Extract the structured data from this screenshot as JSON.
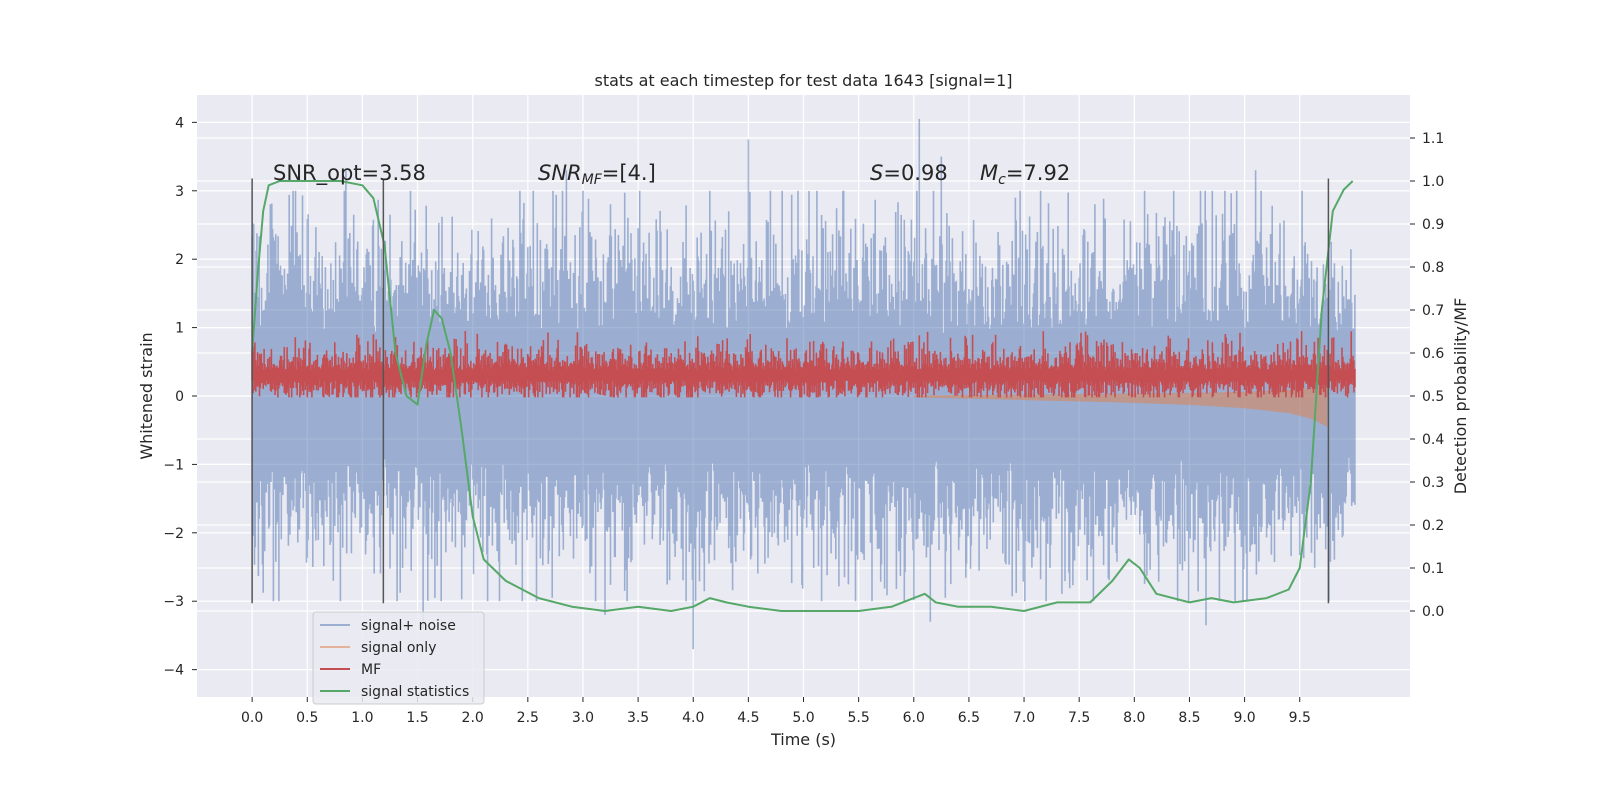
{
  "chart_data": {
    "type": "line",
    "title": "stats at each timestep for test data 1643 [signal=1]",
    "xlabel": "Time (s)",
    "ylabel": "Whitened strain",
    "y2label": "Detection probability/MF",
    "xlim": [
      -0.5,
      10.5
    ],
    "ylim": [
      -4.4,
      4.4
    ],
    "y2lim": [
      -0.2,
      1.2
    ],
    "xticks": [
      "0.0",
      "0.5",
      "1.0",
      "1.5",
      "2.0",
      "2.5",
      "3.0",
      "3.5",
      "4.0",
      "4.5",
      "5.0",
      "5.5",
      "6.0",
      "6.5",
      "7.0",
      "7.5",
      "8.0",
      "8.5",
      "9.0",
      "9.5"
    ],
    "yticks": [
      "4",
      "3",
      "2",
      "1",
      "0",
      "−1",
      "−2",
      "−3",
      "−4"
    ],
    "y2ticks": [
      "1.1",
      "1.0",
      "0.9",
      "0.8",
      "0.7",
      "0.6",
      "0.5",
      "0.4",
      "0.3",
      "0.2",
      "0.1",
      "0.0"
    ],
    "grid": true,
    "legend_position": "lower-left",
    "background": "#eaeaf2",
    "annotations": {
      "snr_opt": "SNR_opt=3.58",
      "snr_mf_label": "SNR",
      "snr_mf_sub": "MF",
      "snr_mf_value": "=[4.]",
      "s_label": "S",
      "s_value": "=0.98",
      "mc_label": "M",
      "mc_sub": "c",
      "mc_value": "=7.92"
    },
    "vlines_x": [
      0.0,
      1.19,
      9.76
    ],
    "series": [
      {
        "name": "signal+ noise",
        "color": "#4c72b0",
        "alpha": 0.5,
        "axis": "left",
        "x_range": [
          0.0,
          10.0
        ],
        "noise_std": 0.9,
        "peaks": [
          [
            0.85,
            3.3
          ],
          [
            2.85,
            3.3
          ],
          [
            4.5,
            3.75
          ],
          [
            6.05,
            4.05
          ],
          [
            6.25,
            3.5
          ],
          [
            9.1,
            3.3
          ],
          [
            4.0,
            -3.7
          ],
          [
            3.2,
            -3.2
          ],
          [
            6.15,
            -3.3
          ],
          [
            8.65,
            -3.35
          ],
          [
            1.55,
            -3.4
          ]
        ]
      },
      {
        "name": "signal only",
        "color": "#dd8452",
        "alpha": 0.55,
        "axis": "left",
        "envelope": [
          [
            6.0,
            0.02
          ],
          [
            7.0,
            0.06
          ],
          [
            7.8,
            0.09
          ],
          [
            8.5,
            0.13
          ],
          [
            9.0,
            0.18
          ],
          [
            9.4,
            0.25
          ],
          [
            9.6,
            0.33
          ],
          [
            9.75,
            0.45
          ]
        ]
      },
      {
        "name": "MF",
        "color": "#c44e52",
        "alpha": 1.0,
        "axis": "left",
        "x_range": [
          0.0,
          10.0
        ],
        "mean": 0.28,
        "spread": 0.18,
        "peak_max": 0.95
      },
      {
        "name": "signal statistics",
        "color": "#55a868",
        "alpha": 1.0,
        "axis": "right",
        "x": [
          0.0,
          0.05,
          0.1,
          0.15,
          0.25,
          0.4,
          0.6,
          0.8,
          1.0,
          1.1,
          1.2,
          1.3,
          1.4,
          1.5,
          1.58,
          1.65,
          1.72,
          1.8,
          1.9,
          2.0,
          2.1,
          2.3,
          2.6,
          2.9,
          3.2,
          3.5,
          3.8,
          4.0,
          4.15,
          4.3,
          4.5,
          4.8,
          5.1,
          5.5,
          5.8,
          6.0,
          6.1,
          6.2,
          6.4,
          6.7,
          7.0,
          7.3,
          7.6,
          7.8,
          7.95,
          8.05,
          8.2,
          8.5,
          8.7,
          8.9,
          9.2,
          9.4,
          9.5,
          9.6,
          9.7,
          9.8,
          9.9,
          9.98
        ],
        "y": [
          0.6,
          0.78,
          0.93,
          0.99,
          1.0,
          1.0,
          1.0,
          1.0,
          0.99,
          0.96,
          0.85,
          0.6,
          0.5,
          0.48,
          0.62,
          0.7,
          0.68,
          0.6,
          0.42,
          0.22,
          0.12,
          0.07,
          0.03,
          0.01,
          0.0,
          0.01,
          0.0,
          0.01,
          0.03,
          0.02,
          0.01,
          0.0,
          0.0,
          0.0,
          0.01,
          0.03,
          0.04,
          0.02,
          0.01,
          0.01,
          0.0,
          0.02,
          0.02,
          0.07,
          0.12,
          0.1,
          0.04,
          0.02,
          0.03,
          0.02,
          0.03,
          0.05,
          0.1,
          0.3,
          0.7,
          0.93,
          0.98,
          1.0
        ]
      }
    ]
  }
}
